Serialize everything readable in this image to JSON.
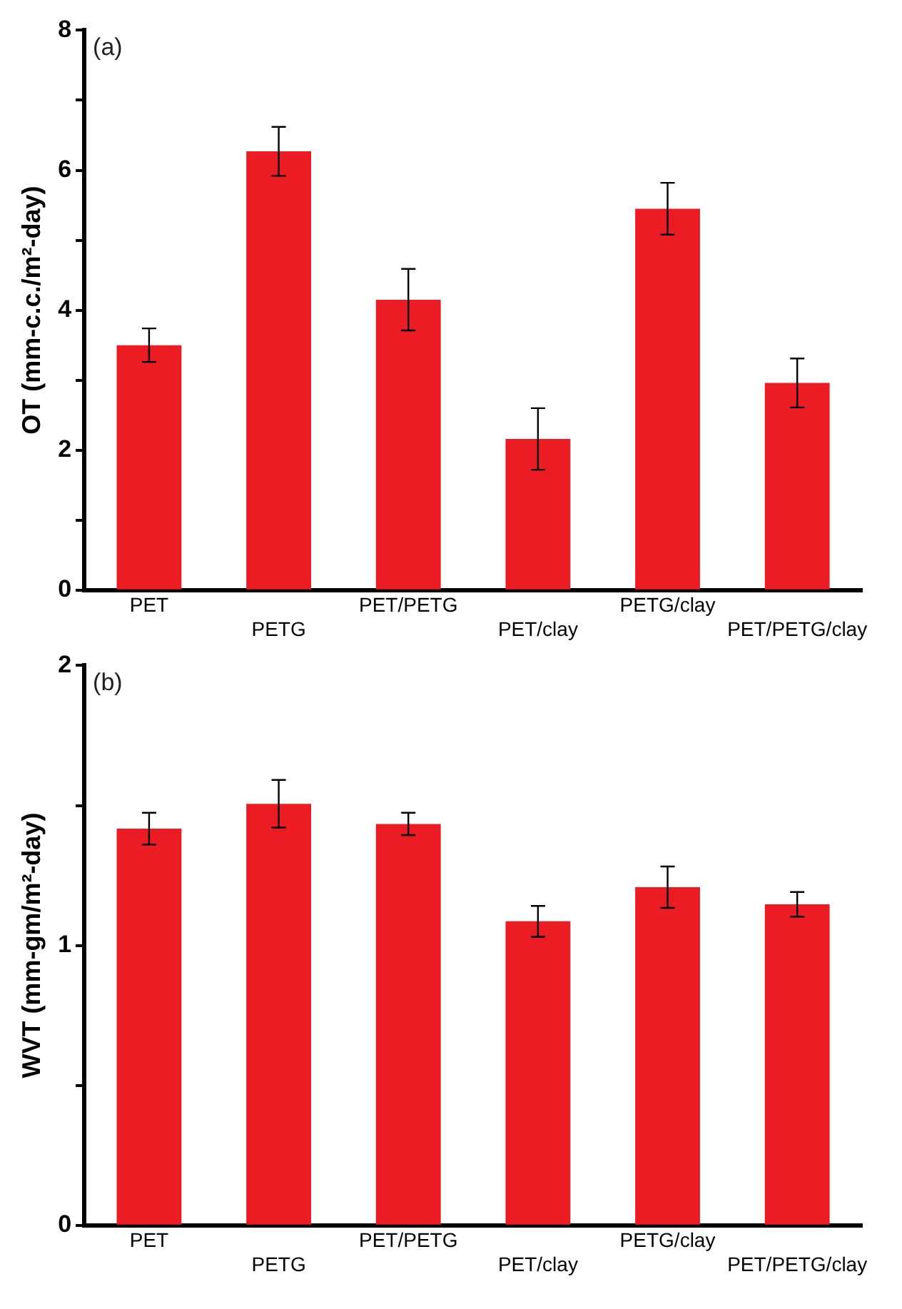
{
  "chart_data": [
    {
      "type": "bar",
      "ylabel": "OT (mm-c.c./m²-day)",
      "annotations": [
        "(a)"
      ],
      "categories": [
        "PET",
        "PETG",
        "PET/PETG",
        "PET/clay",
        "PETG/clay",
        "PET/PETG/clay"
      ],
      "values": [
        3.5,
        6.27,
        4.15,
        2.16,
        5.45,
        2.96
      ],
      "errors": [
        0.24,
        0.35,
        0.44,
        0.44,
        0.37,
        0.35
      ],
      "color": "#ec1c24",
      "ylim": [
        0,
        8
      ],
      "yticks": [
        0,
        {
          "value": 1,
          "label": null
        },
        2,
        {
          "value": 3,
          "label": null
        },
        4,
        {
          "value": 5,
          "label": null
        },
        6,
        {
          "value": 7,
          "label": null
        },
        8
      ],
      "grid": false,
      "legend": false
    },
    {
      "type": "bar",
      "ylabel": "WVT (mm-gm/m²-day)",
      "annotations": [
        "(b)"
      ],
      "categories": [
        "PET",
        "PETG",
        "PET/PETG",
        "PET/clay",
        "PETG/clay",
        "PET/PETG/clay"
      ],
      "values": [
        1.417,
        1.506,
        1.434,
        1.086,
        1.208,
        1.147
      ],
      "errors": [
        0.057,
        0.085,
        0.04,
        0.055,
        0.074,
        0.044
      ],
      "color": "#ec1c24",
      "ylim": [
        0,
        2
      ],
      "yticks": [
        0,
        {
          "value": 0.5,
          "label": null
        },
        1,
        {
          "value": 1.5,
          "label": null
        },
        2
      ],
      "grid": false,
      "legend": false
    }
  ]
}
